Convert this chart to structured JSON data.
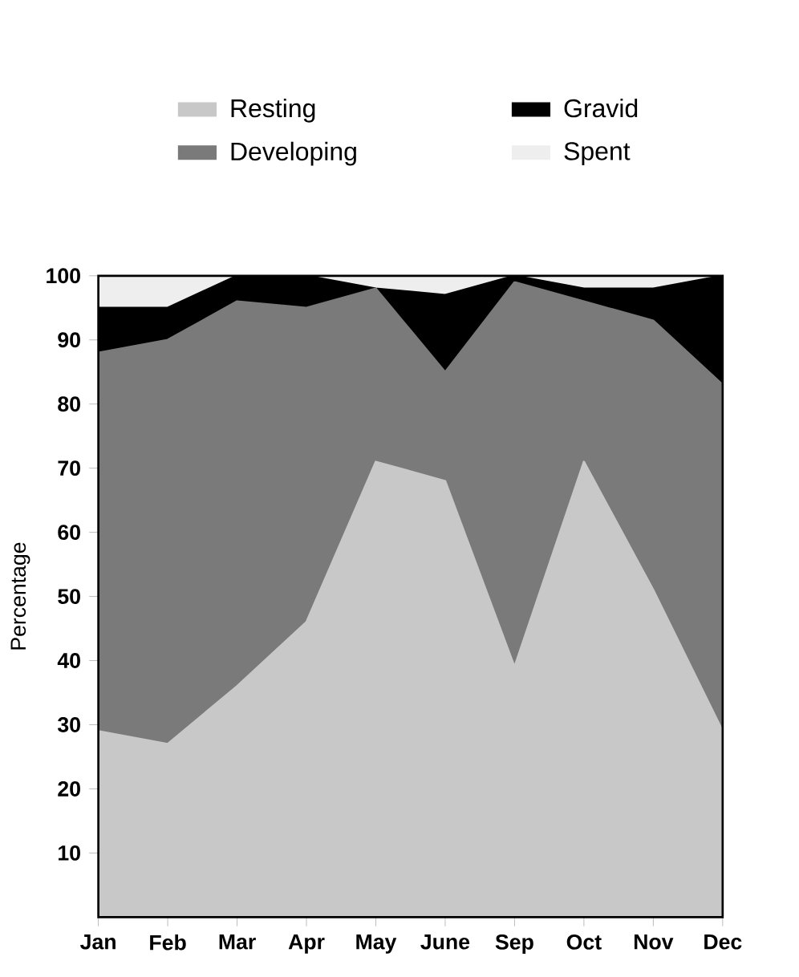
{
  "chart_data": {
    "type": "area",
    "stacked": true,
    "ylabel": "Percentage",
    "categories": [
      "Jan",
      "Feb",
      "Mar",
      "Apr",
      "May",
      "June",
      "Sep",
      "Oct",
      "Nov",
      "Dec"
    ],
    "series": [
      {
        "name": "Resting",
        "color": "#c8c8c8",
        "values": [
          29,
          27,
          36,
          46,
          71,
          68,
          39,
          71,
          51,
          29
        ]
      },
      {
        "name": "Developing",
        "color": "#7a7a7a",
        "values": [
          59,
          63,
          60,
          49,
          27,
          17,
          60,
          25,
          42,
          54
        ]
      },
      {
        "name": "Gravid",
        "color": "#000000",
        "values": [
          7,
          5,
          4,
          5,
          0,
          12,
          1,
          2,
          5,
          17
        ]
      },
      {
        "name": "Spent",
        "color": "#eeeeee",
        "values": [
          5,
          5,
          0,
          0,
          2,
          3,
          0,
          2,
          2,
          0
        ]
      }
    ],
    "ylim": [
      0,
      100
    ],
    "yticks": [
      10,
      20,
      30,
      40,
      50,
      60,
      70,
      80,
      90,
      100
    ],
    "legend": "top",
    "grid": false
  }
}
